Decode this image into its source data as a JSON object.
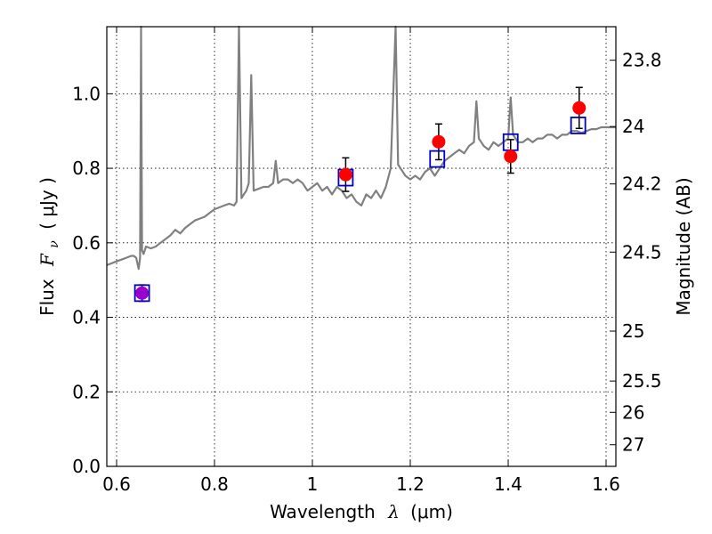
{
  "chart_data": {
    "type": "scatter",
    "xlabel": "Wavelength",
    "xlabel_symbol": "λ",
    "xlabel_unit": "(μm)",
    "ylabel": "Flux",
    "ylabel_symbol": "F",
    "ylabel_subscript": "ν",
    "ylabel_unit": "( μJy )",
    "y2label": "Magnitude (AB)",
    "xlim": [
      0.58,
      1.62
    ],
    "ylim": [
      0.0,
      1.18
    ],
    "grid": true,
    "x_ticks": [
      0.6,
      0.8,
      1.0,
      1.2,
      1.4,
      1.6
    ],
    "x_tick_labels": [
      "0.6",
      "0.8",
      "1",
      "1.2",
      "1.4",
      "1.6"
    ],
    "y_ticks": [
      0.0,
      0.2,
      0.4,
      0.6,
      0.8,
      1.0
    ],
    "y_tick_labels": [
      "0.0",
      "0.2",
      "0.4",
      "0.6",
      "0.8",
      "1.0"
    ],
    "y2_ticks": [
      {
        "label": "23.8",
        "flux": 1.09
      },
      {
        "label": "24",
        "flux": 0.912
      },
      {
        "label": "24.2",
        "flux": 0.758
      },
      {
        "label": "24.5",
        "flux": 0.575
      },
      {
        "label": "25",
        "flux": 0.363
      },
      {
        "label": "25.5",
        "flux": 0.229
      },
      {
        "label": "26",
        "flux": 0.145
      },
      {
        "label": "27",
        "flux": 0.058
      }
    ],
    "series": [
      {
        "kind": "spectrum",
        "color": "#808080",
        "x": [
          0.58,
          0.59,
          0.6,
          0.61,
          0.62,
          0.63,
          0.635,
          0.64,
          0.645,
          0.648,
          0.65,
          0.652,
          0.655,
          0.66,
          0.67,
          0.68,
          0.69,
          0.7,
          0.71,
          0.72,
          0.73,
          0.74,
          0.75,
          0.76,
          0.77,
          0.78,
          0.79,
          0.8,
          0.81,
          0.82,
          0.83,
          0.84,
          0.845,
          0.85,
          0.855,
          0.86,
          0.865,
          0.87,
          0.875,
          0.88,
          0.89,
          0.9,
          0.91,
          0.92,
          0.925,
          0.93,
          0.94,
          0.95,
          0.96,
          0.97,
          0.98,
          0.99,
          1.0,
          1.01,
          1.02,
          1.03,
          1.04,
          1.05,
          1.06,
          1.07,
          1.08,
          1.09,
          1.1,
          1.11,
          1.12,
          1.13,
          1.14,
          1.15,
          1.16,
          1.17,
          1.175,
          1.18,
          1.185,
          1.19,
          1.2,
          1.21,
          1.22,
          1.23,
          1.24,
          1.25,
          1.26,
          1.27,
          1.28,
          1.29,
          1.3,
          1.31,
          1.32,
          1.33,
          1.335,
          1.34,
          1.345,
          1.35,
          1.36,
          1.37,
          1.38,
          1.39,
          1.4,
          1.405,
          1.41,
          1.415,
          1.42,
          1.43,
          1.44,
          1.45,
          1.46,
          1.47,
          1.48,
          1.49,
          1.5,
          1.51,
          1.52,
          1.53,
          1.54,
          1.55,
          1.56,
          1.57,
          1.58,
          1.59,
          1.6,
          1.61,
          1.62
        ],
        "y": [
          0.54,
          0.545,
          0.55,
          0.555,
          0.56,
          0.565,
          0.565,
          0.56,
          0.53,
          0.56,
          1.18,
          0.58,
          0.57,
          0.59,
          0.585,
          0.59,
          0.6,
          0.61,
          0.62,
          0.635,
          0.625,
          0.64,
          0.65,
          0.66,
          0.665,
          0.67,
          0.68,
          0.69,
          0.695,
          0.7,
          0.705,
          0.7,
          0.71,
          1.18,
          0.72,
          0.73,
          0.74,
          0.76,
          1.05,
          0.74,
          0.745,
          0.75,
          0.75,
          0.76,
          0.82,
          0.76,
          0.77,
          0.77,
          0.76,
          0.77,
          0.76,
          0.74,
          0.75,
          0.76,
          0.74,
          0.75,
          0.73,
          0.75,
          0.74,
          0.72,
          0.73,
          0.71,
          0.7,
          0.73,
          0.72,
          0.74,
          0.72,
          0.75,
          0.8,
          1.18,
          0.81,
          0.8,
          0.79,
          0.78,
          0.77,
          0.78,
          0.77,
          0.79,
          0.8,
          0.78,
          0.8,
          0.82,
          0.83,
          0.84,
          0.85,
          0.84,
          0.86,
          0.87,
          0.98,
          0.88,
          0.87,
          0.86,
          0.85,
          0.87,
          0.86,
          0.87,
          0.88,
          0.99,
          0.89,
          0.88,
          0.87,
          0.87,
          0.88,
          0.87,
          0.88,
          0.88,
          0.89,
          0.89,
          0.88,
          0.89,
          0.89,
          0.9,
          0.9,
          0.895,
          0.9,
          0.905,
          0.905,
          0.91,
          0.91,
          0.91,
          0.91
        ]
      },
      {
        "kind": "model_photometry",
        "marker": "open-square",
        "color": "#0000cc",
        "x": [
          0.652,
          1.068,
          1.255,
          1.405,
          1.543
        ],
        "y": [
          0.465,
          0.775,
          0.825,
          0.87,
          0.915
        ]
      },
      {
        "kind": "observed_photometry",
        "marker": "filled-circle",
        "color": "#ff0000",
        "x": [
          0.652,
          1.068,
          1.258,
          1.405,
          1.545
        ],
        "y": [
          0.465,
          0.783,
          0.871,
          0.832,
          0.962
        ],
        "yerr": [
          0.022,
          0.045,
          0.048,
          0.045,
          0.055
        ],
        "colors": [
          "#9900cc",
          "#ff0000",
          "#ff0000",
          "#ff0000",
          "#ff0000"
        ]
      }
    ]
  }
}
